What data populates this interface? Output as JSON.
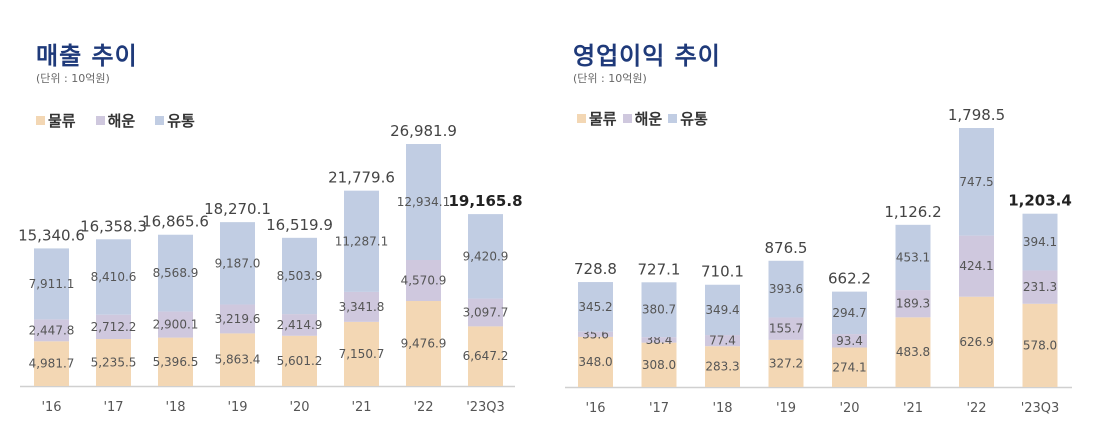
{
  "chart_data": [
    {
      "type": "bar",
      "stacked": true,
      "title": "매출 추이",
      "subtitle": "(단위 : 10억원)",
      "categories": [
        "'16",
        "'17",
        "'18",
        "'19",
        "'20",
        "'21",
        "'22",
        "'23Q3"
      ],
      "series": [
        {
          "name": "물류",
          "color": "#f3d7b4",
          "values": [
            4981.7,
            5235.5,
            5396.5,
            5863.4,
            5601.2,
            7150.7,
            9476.9,
            6647.2
          ],
          "labels": [
            "4,981.7",
            "5,235.5",
            "5,396.5",
            "5,863.4",
            "5,601.2",
            "7,150.7",
            "9,476.9",
            "6,647.2"
          ]
        },
        {
          "name": "해운",
          "color": "#cfc8de",
          "values": [
            2447.8,
            2712.2,
            2900.1,
            3219.6,
            2414.9,
            3341.8,
            4570.9,
            3097.7
          ],
          "labels": [
            "2,447.8",
            "2,712.2",
            "2,900.1",
            "3,219.6",
            "2,414.9",
            "3,341.8",
            "4,570.9",
            "3,097.7"
          ]
        },
        {
          "name": "유통",
          "color": "#c1cde3",
          "values": [
            7911.1,
            8410.6,
            8568.9,
            9187.0,
            8503.9,
            11287.1,
            12934.1,
            9420.9
          ],
          "labels": [
            "7,911.1",
            "8,410.6",
            "8,568.9",
            "9,187.0",
            "8,503.9",
            "11,287.1",
            "12,934.1",
            "9,420.9"
          ]
        }
      ],
      "totals": [
        15340.6,
        16358.3,
        16865.6,
        18270.1,
        16519.9,
        21779.6,
        26981.9,
        19165.8
      ],
      "total_labels": [
        "15,340.6",
        "16,358.3",
        "16,865.6",
        "18,270.1",
        "16,519.9",
        "21,779.6",
        "26,981.9",
        "19,165.8"
      ],
      "ylim": [
        0,
        27000
      ],
      "legend": "top-left",
      "grid": false
    },
    {
      "type": "bar",
      "stacked": true,
      "title": "영업이익 추이",
      "subtitle": "(단위 : 10억원)",
      "categories": [
        "'16",
        "'17",
        "'18",
        "'19",
        "'20",
        "'21",
        "'22",
        "'23Q3"
      ],
      "series": [
        {
          "name": "물류",
          "color": "#f3d7b4",
          "values": [
            348.0,
            308.0,
            283.3,
            327.2,
            274.1,
            483.8,
            626.9,
            578.0
          ],
          "labels": [
            "348.0",
            "308.0",
            "283.3",
            "327.2",
            "274.1",
            "483.8",
            "626.9",
            "578.0"
          ]
        },
        {
          "name": "해운",
          "color": "#cfc8de",
          "values": [
            35.6,
            38.4,
            77.4,
            155.7,
            93.4,
            189.3,
            424.1,
            231.3
          ],
          "labels": [
            "35.6",
            "38.4",
            "77.4",
            "155.7",
            "93.4",
            "189.3",
            "424.1",
            "231.3"
          ]
        },
        {
          "name": "유통",
          "color": "#c1cde3",
          "values": [
            345.2,
            380.7,
            349.4,
            393.6,
            294.7,
            453.1,
            747.5,
            394.1
          ],
          "labels": [
            "345.2",
            "380.7",
            "349.4",
            "393.6",
            "294.7",
            "453.1",
            "747.5",
            "394.1"
          ]
        }
      ],
      "totals": [
        728.8,
        727.1,
        710.1,
        876.5,
        662.2,
        1126.2,
        1798.5,
        1203.4
      ],
      "total_labels": [
        "728.8",
        "727.1",
        "710.1",
        "876.5",
        "662.2",
        "1,126.2",
        "1,798.5",
        "1,203.4"
      ],
      "ylim": [
        0,
        1800
      ],
      "legend": "top-left",
      "grid": false
    }
  ]
}
